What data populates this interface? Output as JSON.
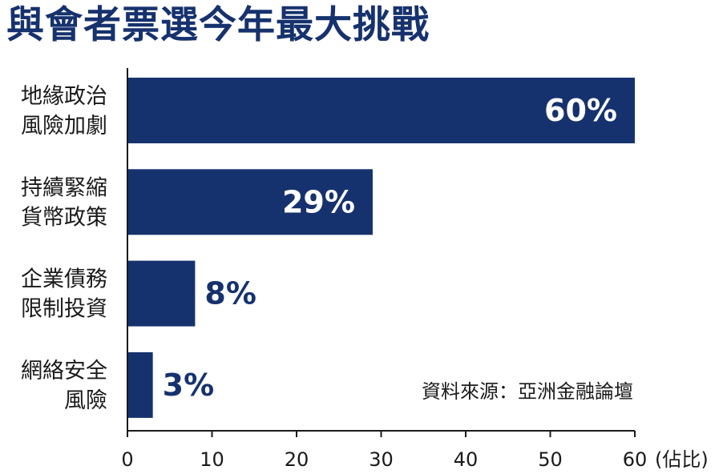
{
  "chart_data": {
    "type": "bar",
    "orientation": "horizontal",
    "title": "與會者票選今年最大挑戰",
    "categories": [
      [
        "地緣政治",
        "風險加劇"
      ],
      [
        "持續緊縮",
        "貨幣政策"
      ],
      [
        "企業債務",
        "限制投資"
      ],
      [
        "網絡安全",
        "風險"
      ]
    ],
    "values": [
      60,
      29,
      8,
      3
    ],
    "value_labels": [
      "60%",
      "29%",
      "8%",
      "3%"
    ],
    "x_ticks": [
      "0",
      "10",
      "20",
      "30",
      "40",
      "50",
      "60"
    ],
    "xlim": [
      0,
      60
    ],
    "xlabel": "(佔比)",
    "source": "資料來源：亞洲金融論壇",
    "grid": false,
    "bar_color": "#16326e",
    "inside_label_color": "#ffffff",
    "outside_label_color": "#16326e"
  }
}
